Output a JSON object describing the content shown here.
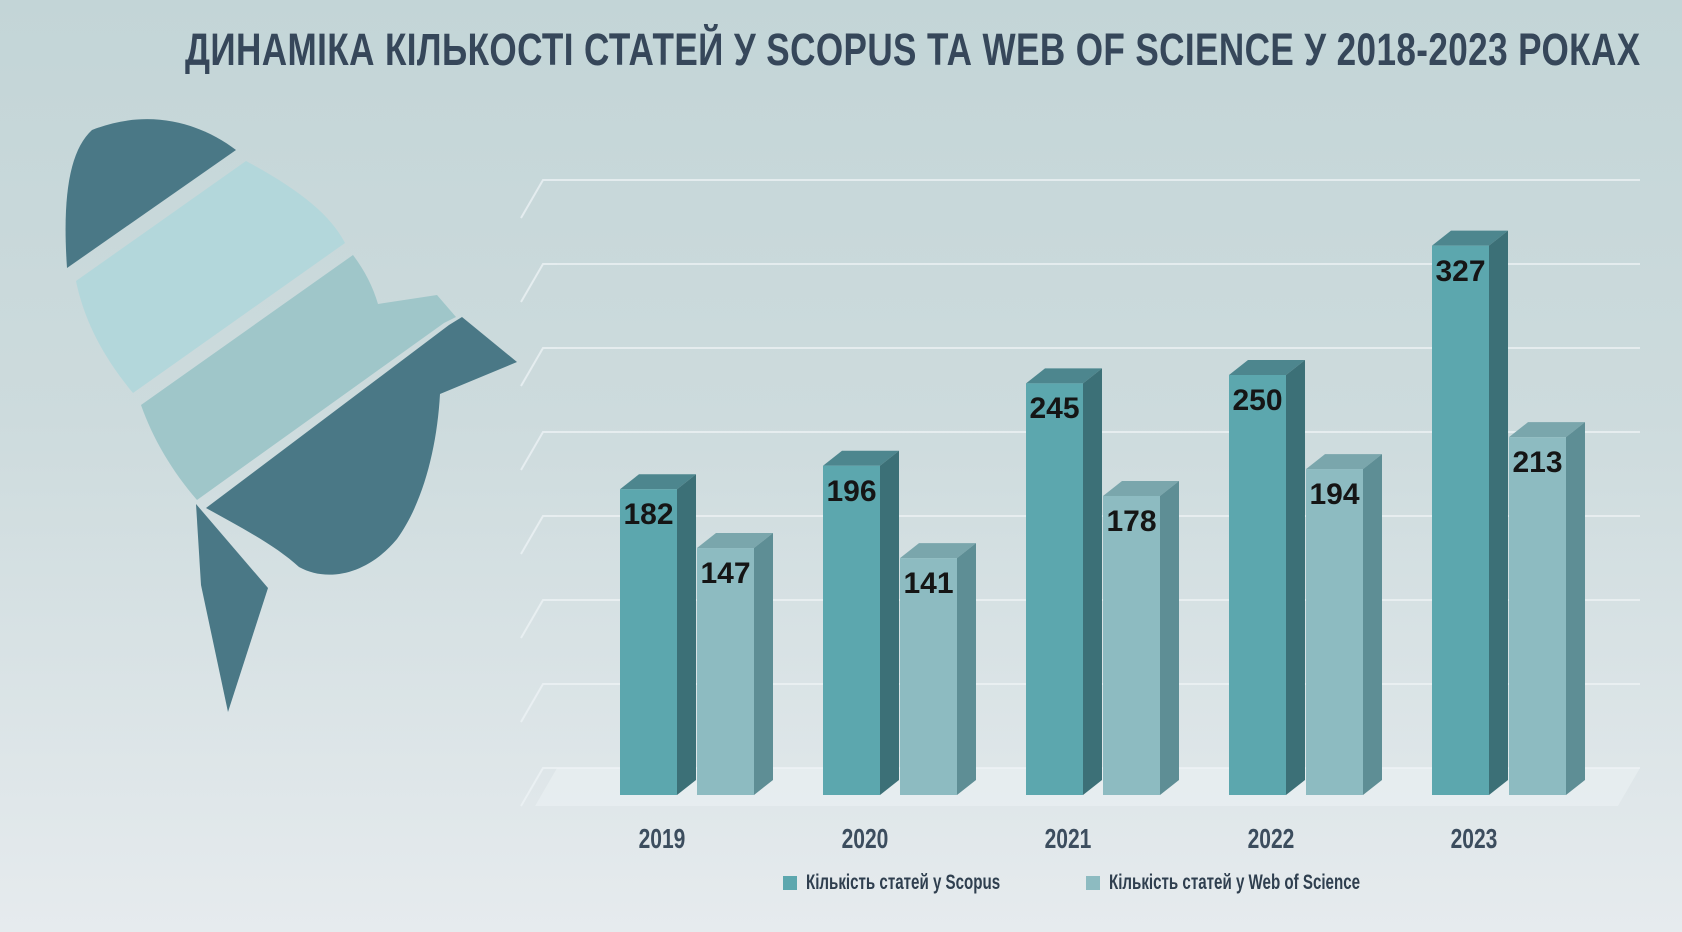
{
  "title": "ДИНАМІКА КІЛЬКОСТІ СТАТЕЙ У SCOPUS ТА WEB OF SCIENCE У 2018-2023 РОКАХ",
  "palette": {
    "background_top": "#c3d5d7",
    "background_bottom": "#e6ebee",
    "title_color": "#36475a",
    "axis_label_color": "#3c4d5e",
    "value_label_color": "#151515",
    "legend_text_color": "#2f3f4f",
    "gridline_color": "#eef3f5",
    "floor_color": "rgba(238,244,246,0.5)",
    "rocket_dark": "#4a7886",
    "rocket_light": "#b3d7db",
    "rocket_mid": "#9fc6c9"
  },
  "chart_data": {
    "type": "bar",
    "style": "3d-column",
    "title": "ДИНАМІКА КІЛЬКОСТІ СТАТЕЙ У SCOPUS ТА WEB OF SCIENCE У 2018-2023 РОКАХ",
    "categories": [
      "2019",
      "2020",
      "2021",
      "2022",
      "2023"
    ],
    "series": [
      {
        "name": "Кількість статей у Scopus",
        "values": [
          182,
          196,
          245,
          250,
          327
        ],
        "color_front": "#5ca7ae",
        "color_side": "#3c7077",
        "color_top": "#4d868e"
      },
      {
        "name": "Кількість статей у Web of Science",
        "values": [
          147,
          141,
          178,
          194,
          213
        ],
        "color_front": "#8dbbc1",
        "color_side": "#5e8e95",
        "color_top": "#7aa6ac"
      }
    ],
    "xlabel": "",
    "ylabel": "",
    "ylim": [
      0,
      350
    ],
    "grid_step": 50,
    "grid": true,
    "value_labels": true,
    "legend_position": "bottom"
  }
}
